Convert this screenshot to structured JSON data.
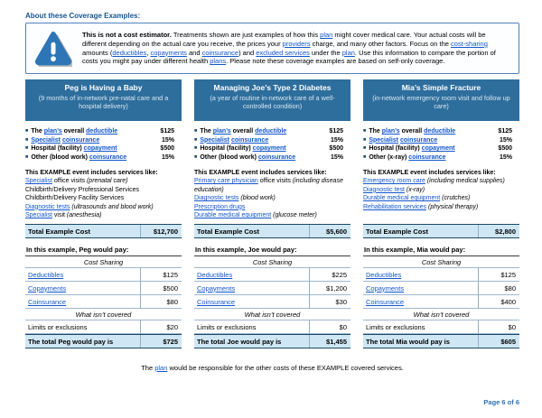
{
  "page": {
    "heading": "About these Coverage Examples:",
    "footnote_segments": [
      {
        "t": "The "
      },
      {
        "t": "plan",
        "s": "link"
      },
      {
        "t": " would be responsible for the other costs of these EXAMPLE covered services."
      }
    ],
    "page_number": "Page 6 of 6"
  },
  "colors": {
    "header_bar": "#2e6e9d",
    "shaded_row": "#cfe7f5",
    "link": "#1155cc",
    "dark_border": "#1c4668",
    "heading_blue": "#17558f",
    "page_number_blue": "#2e74b5",
    "warning_icon_blue": "#2e75b6"
  },
  "disclaimer": {
    "segments": [
      {
        "t": "This is not a cost estimator. ",
        "s": "b"
      },
      {
        "t": "Treatments shown are just examples of how this "
      },
      {
        "t": "plan",
        "s": "link"
      },
      {
        "t": " might cover medical care. Your actual costs will be different depending on the actual care you receive, the prices your "
      },
      {
        "t": "providers",
        "s": "link"
      },
      {
        "t": " charge, and many other factors. Focus on the "
      },
      {
        "t": "cost-sharing",
        "s": "link"
      },
      {
        "t": " amounts ("
      },
      {
        "t": "deductibles",
        "s": "link"
      },
      {
        "t": ", "
      },
      {
        "t": "copayments",
        "s": "link"
      },
      {
        "t": " and "
      },
      {
        "t": "coinsurance",
        "s": "link"
      },
      {
        "t": ") and "
      },
      {
        "t": "excluded services",
        "s": "link"
      },
      {
        "t": " under the "
      },
      {
        "t": "plan",
        "s": "link"
      },
      {
        "t": ". Use this information to compare the portion of costs you might pay under different health "
      },
      {
        "t": "plans",
        "s": "link"
      },
      {
        "t": ". Please note these coverage examples are based on self-only coverage."
      }
    ]
  },
  "columns": [
    {
      "title": "Peg is Having a Baby",
      "subtitle": "(9 months of in-network pre-natal care and a hospital delivery)",
      "plan_items": [
        {
          "segments": [
            {
              "t": "The "
            },
            {
              "t": "plan’s",
              "s": "link"
            },
            {
              "t": " overall "
            },
            {
              "t": "deductible",
              "s": "link"
            }
          ],
          "value": "$125"
        },
        {
          "segments": [
            {
              "t": "Specialist",
              "s": "link"
            },
            {
              "t": " "
            },
            {
              "t": "coinsurance",
              "s": "link"
            }
          ],
          "value": "15%"
        },
        {
          "segments": [
            {
              "t": "Hospital (facility) "
            },
            {
              "t": "copayment",
              "s": "link"
            }
          ],
          "value": "$500"
        },
        {
          "segments": [
            {
              "t": "Other (blood work) "
            },
            {
              "t": "coinsurance",
              "s": "link"
            }
          ],
          "value": "15%"
        }
      ],
      "services_heading": "This EXAMPLE event includes services like:",
      "services": [
        [
          {
            "t": "Specialist",
            "s": "link"
          },
          {
            "t": " office visits "
          },
          {
            "t": "(prenatal care)",
            "s": "i"
          }
        ],
        [
          {
            "t": "Childbirth/Delivery Professional Services"
          }
        ],
        [
          {
            "t": "Childbirth/Delivery Facility Services"
          }
        ],
        [
          {
            "t": "Diagnostic tests",
            "s": "link"
          },
          {
            "t": " "
          },
          {
            "t": "(ultrasounds and blood work)",
            "s": "i"
          }
        ],
        [
          {
            "t": "Specialist",
            "s": "link"
          },
          {
            "t": " visit "
          },
          {
            "t": "(anesthesia)",
            "s": "i"
          }
        ]
      ],
      "total_label": "Total Example Cost",
      "total_value": "$12,700",
      "pay_heading": "In this example, Peg would pay:",
      "cost_sharing_label": "Cost Sharing",
      "rows": [
        {
          "label": "Deductibles",
          "value": "$125"
        },
        {
          "label": "Copayments",
          "value": "$500"
        },
        {
          "label": "Coinsurance",
          "value": "$80"
        }
      ],
      "not_covered_label": "What isn’t covered",
      "limits_label": "Limits or exclusions",
      "limits_value": "$20",
      "total_pay_label": "The total Peg would pay is",
      "total_pay_value": "$725"
    },
    {
      "title": "Managing Joe’s Type 2 Diabetes",
      "subtitle": "(a year of routine in-network care of a well-controlled condition)",
      "plan_items": [
        {
          "segments": [
            {
              "t": "The "
            },
            {
              "t": "plan’s",
              "s": "link"
            },
            {
              "t": " overall "
            },
            {
              "t": "deductible",
              "s": "link"
            }
          ],
          "value": "$125"
        },
        {
          "segments": [
            {
              "t": "Specialist",
              "s": "link"
            },
            {
              "t": " "
            },
            {
              "t": "coinsurance",
              "s": "link"
            }
          ],
          "value": "15%"
        },
        {
          "segments": [
            {
              "t": "Hospital (facility) "
            },
            {
              "t": "copayment",
              "s": "link"
            }
          ],
          "value": "$500"
        },
        {
          "segments": [
            {
              "t": "Other (blood work) "
            },
            {
              "t": "coinsurance",
              "s": "link"
            }
          ],
          "value": "15%"
        }
      ],
      "services_heading": "This EXAMPLE event includes services like:",
      "services": [
        [
          {
            "t": "Primary care physician",
            "s": "link"
          },
          {
            "t": " office visits "
          },
          {
            "t": "(including disease education)",
            "s": "i"
          }
        ],
        [
          {
            "t": "Diagnostic tests",
            "s": "link"
          },
          {
            "t": " "
          },
          {
            "t": "(blood work)",
            "s": "i"
          }
        ],
        [
          {
            "t": "Prescription drugs",
            "s": "link"
          }
        ],
        [
          {
            "t": "Durable medical equipment",
            "s": "link"
          },
          {
            "t": " "
          },
          {
            "t": "(glucose meter)",
            "s": "i"
          }
        ]
      ],
      "total_label": "Total Example Cost",
      "total_value": "$5,600",
      "pay_heading": "In this example, Joe would pay:",
      "cost_sharing_label": "Cost Sharing",
      "rows": [
        {
          "label": "Deductibles",
          "value": "$225"
        },
        {
          "label": "Copayments",
          "value": "$1,200"
        },
        {
          "label": "Coinsurance",
          "value": "$30"
        }
      ],
      "not_covered_label": "What isn’t covered",
      "limits_label": "Limits or exclusions",
      "limits_value": "$0",
      "total_pay_label": "The total Joe would pay is",
      "total_pay_value": "$1,455"
    },
    {
      "title": "Mia’s Simple Fracture",
      "subtitle": "(in-network emergency room visit and follow up care)",
      "plan_items": [
        {
          "segments": [
            {
              "t": "The "
            },
            {
              "t": "plan’s",
              "s": "link"
            },
            {
              "t": " overall "
            },
            {
              "t": "deductible",
              "s": "link"
            }
          ],
          "value": "$125"
        },
        {
          "segments": [
            {
              "t": "Specialist",
              "s": "link"
            },
            {
              "t": " "
            },
            {
              "t": "coinsurance",
              "s": "link"
            }
          ],
          "value": "15%"
        },
        {
          "segments": [
            {
              "t": "Hospital (facility) "
            },
            {
              "t": "copayment",
              "s": "link"
            }
          ],
          "value": "$500"
        },
        {
          "segments": [
            {
              "t": "Other (x-ray) "
            },
            {
              "t": "coinsurance",
              "s": "link"
            }
          ],
          "value": "15%"
        }
      ],
      "services_heading": "This EXAMPLE event includes services like:",
      "services": [
        [
          {
            "t": "Emergency room care",
            "s": "link"
          },
          {
            "t": " "
          },
          {
            "t": "(including medical supplies)",
            "s": "i"
          }
        ],
        [
          {
            "t": "Diagnostic test",
            "s": "link"
          },
          {
            "t": " "
          },
          {
            "t": "(x-ray)",
            "s": "i"
          }
        ],
        [
          {
            "t": "Durable medical equipment",
            "s": "link"
          },
          {
            "t": " "
          },
          {
            "t": "(crutches)",
            "s": "i"
          }
        ],
        [
          {
            "t": "Rehabilitation services",
            "s": "link"
          },
          {
            "t": " "
          },
          {
            "t": "(physical therapy)",
            "s": "i"
          }
        ]
      ],
      "total_label": "Total Example Cost",
      "total_value": "$2,800",
      "pay_heading": "In this example, Mia would pay:",
      "cost_sharing_label": "Cost Sharing",
      "rows": [
        {
          "label": "Deductibles",
          "value": "$125"
        },
        {
          "label": "Copayments",
          "value": "$80"
        },
        {
          "label": "Coinsurance",
          "value": "$400"
        }
      ],
      "not_covered_label": "What isn’t covered",
      "limits_label": "Limits or exclusions",
      "limits_value": "$0",
      "total_pay_label": "The total Mia would pay is",
      "total_pay_value": "$605"
    }
  ]
}
